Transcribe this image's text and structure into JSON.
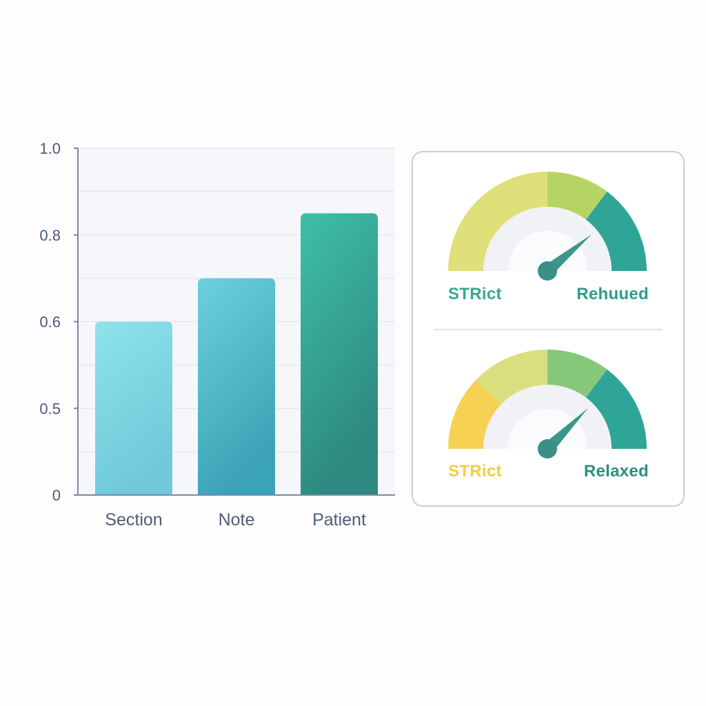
{
  "chart_data": [
    {
      "type": "bar",
      "title": "",
      "xlabel": "",
      "ylabel": "",
      "categories": [
        "Section",
        "Note",
        "Patient"
      ],
      "values": [
        0.6,
        0.7,
        0.85
      ],
      "ytick_labels": [
        "0",
        "0.5",
        "0.6",
        "0.8",
        "1.0"
      ],
      "ylim": [
        0,
        1.0
      ],
      "grid": true,
      "colors": {
        "bars": [
          [
            "#8ee3ec",
            "#6fc9d8"
          ],
          [
            "#6cd0de",
            "#3ba3b6"
          ],
          [
            "#3fbfa8",
            "#2d8880"
          ]
        ],
        "axis": "#7b88a4"
      }
    },
    {
      "type": "gauge",
      "scale_low_label": "STRict",
      "scale_high_label": "Rehuued",
      "needle_level": 0.78,
      "segment_colors": [
        "#dfe07a",
        "#b6d464",
        "#2ea597"
      ],
      "low_label_color": "#3aa88e",
      "high_label_color": "#2f9c8a"
    },
    {
      "type": "gauge",
      "scale_low_label": "STRict",
      "scale_high_label": "Relaxed",
      "needle_level": 0.75,
      "segment_colors": [
        "#f7d154",
        "#d9df7e",
        "#86c87a",
        "#2ea597"
      ],
      "low_label_color": "#f2cc45",
      "high_label_color": "#2b8f80"
    }
  ]
}
